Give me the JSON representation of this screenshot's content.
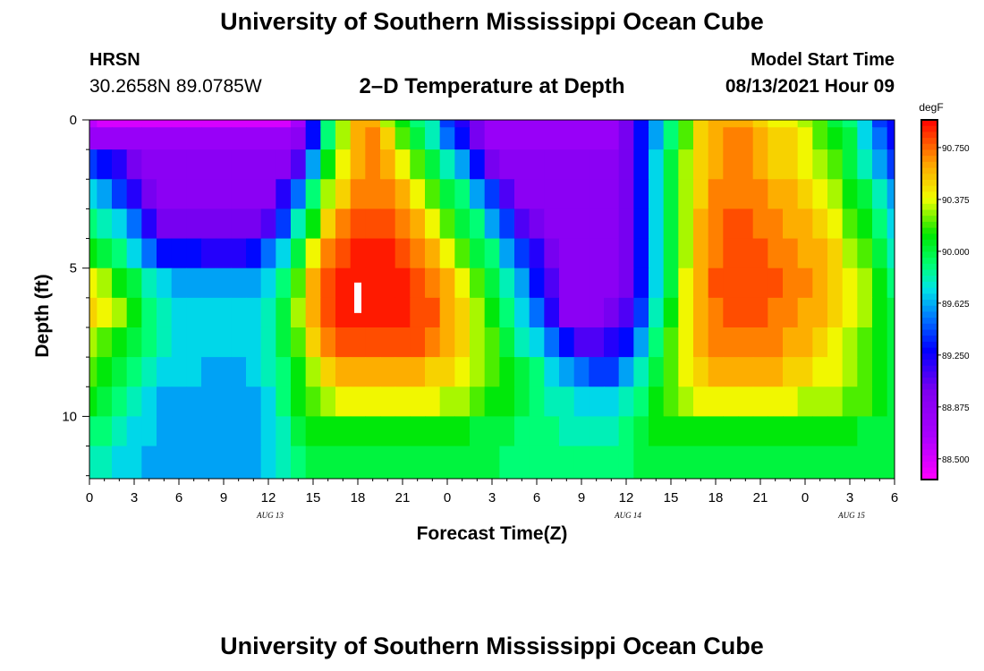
{
  "page": {
    "title_top": "University of Southern Mississippi Ocean Cube",
    "title_bottom": "University of Southern Mississippi Ocean Cube",
    "station": "HRSN",
    "coordinates": "30.2658N  89.0785W",
    "model_start_label": "Model Start Time",
    "model_start_time": "08/13/2021 Hour 09"
  },
  "chart_data": {
    "type": "heatmap",
    "title": "2–D Temperature at Depth",
    "xlabel": "Forecast Time(Z)",
    "ylabel": "Depth (ft)",
    "x_ticks": [
      "0",
      "3",
      "6",
      "9",
      "12",
      "15",
      "18",
      "21",
      "0",
      "3",
      "6",
      "9",
      "12",
      "15",
      "18",
      "21",
      "0",
      "3",
      "6"
    ],
    "x_hours": [
      0,
      54
    ],
    "y_ticks": [
      "0",
      "5",
      "10"
    ],
    "y_range": [
      0,
      12.1
    ],
    "day_labels": [
      {
        "label": "AUG 13",
        "hour": 12
      },
      {
        "label": "AUG 14",
        "hour": 36
      },
      {
        "label": "AUG 15",
        "hour": 51
      }
    ],
    "colorbar": {
      "unit": "degF",
      "ticks": [
        "90.750",
        "90.375",
        "90.000",
        "89.625",
        "89.250",
        "88.875",
        "88.500"
      ],
      "range": [
        88.35,
        90.95
      ]
    },
    "marker": {
      "hour": 18,
      "depth": 6.0
    },
    "grid_hours": [
      0,
      1,
      2,
      3,
      4,
      5,
      6,
      7,
      8,
      9,
      10,
      11,
      12,
      13,
      14,
      15,
      16,
      17,
      18,
      19,
      20,
      21,
      22,
      23,
      24,
      25,
      26,
      27,
      28,
      29,
      30,
      31,
      32,
      33,
      34,
      35,
      36,
      37,
      38,
      39,
      40,
      41,
      42,
      43,
      44,
      45,
      46,
      47,
      48,
      49,
      50,
      51,
      52,
      53,
      54
    ],
    "grid_depths": [
      0,
      0.5,
      1.5,
      2.5,
      3.5,
      4.5,
      5.5,
      6.5,
      7.5,
      8.5,
      9.5,
      10.5,
      11.5,
      12.1
    ],
    "grid_rows": [
      "88.6 88.5 88.5 88.5 88.5 88.5 88.5 88.5 88.5 88.5 88.5 88.5 88.5 88.5 88.7 89.3 89.9 90.3 90.6 90.6 90.3 90.1 89.9 89.8 89.4 89.2 89.0 88.8 88.8 88.8 88.8 88.8 88.8 88.8 88.8 88.8 89.0 89.3 89.6 89.9 90.2 90.5 90.6 90.6 90.6 90.5 90.4 90.4 90.3 90.2 90.0 89.9 89.7 89.4 89.3",
      "88.8 88.8 88.8 88.8 88.8 88.8 88.8 88.8 88.8 88.8 88.8 88.8 88.8 88.8 88.9 89.3 89.9 90.3 90.6 90.7 90.5 90.2 90.0 89.8 89.5 89.3 89.0 88.8 88.8 88.8 88.8 88.8 88.8 88.8 88.8 88.8 89.0 89.3 89.6 89.9 90.2 90.5 90.6 90.7 90.7 90.6 90.5 90.5 90.4 90.2 90.1 90.0 89.7 89.5 89.3",
      "89.4 89.3 89.2 89.0 88.9 88.9 88.9 88.9 88.9 88.9 88.9 88.9 88.9 88.9 89.1 89.6 90.1 90.4 90.6 90.7 90.6 90.4 90.2 90.0 89.8 89.6 89.3 89.0 88.9 88.9 88.9 88.9 88.9 88.9 88.9 88.9 89.0 89.3 89.7 90.0 90.3 90.5 90.6 90.7 90.7 90.6 90.5 90.5 90.4 90.3 90.2 90.0 89.8 89.6 89.4",
      "89.7 89.6 89.4 89.2 89.0 88.9 88.9 88.9 88.9 88.9 88.9 88.9 88.9 89.2 89.5 89.9 90.3 90.5 90.7 90.7 90.7 90.6 90.4 90.2 90.0 89.9 89.6 89.4 89.1 88.9 88.9 88.9 88.9 88.9 88.9 88.9 89.0 89.3 89.7 90.0 90.3 90.5 90.7 90.7 90.7 90.7 90.6 90.6 90.5 90.4 90.3 90.1 90.0 89.8 89.6",
      "89.9 89.8 89.7 89.5 89.2 89.0 89.0 89.0 89.0 89.0 89.0 89.0 89.1 89.4 89.8 90.1 90.5 90.7 90.8 90.8 90.8 90.7 90.6 90.4 90.2 90.0 89.9 89.6 89.4 89.1 89.0 88.9 88.9 88.9 88.9 88.9 89.0 89.3 89.7 90.0 90.3 90.6 90.7 90.8 90.8 90.7 90.7 90.6 90.6 90.5 90.4 90.2 90.1 89.9 89.7",
      "90.1 90.0 89.9 89.7 89.5 89.3 89.3 89.3 89.2 89.2 89.2 89.3 89.5 89.7 90.0 90.4 90.7 90.8 90.9 90.9 90.9 90.8 90.7 90.6 90.4 90.2 90.0 89.9 89.6 89.4 89.2 89.0 88.9 88.9 88.9 88.9 89.0 89.3 89.7 90.0 90.3 90.6 90.7 90.8 90.8 90.8 90.7 90.7 90.6 90.6 90.5 90.3 90.2 90.0 89.8",
      "90.4 90.3 90.1 90.0 89.8 89.7 89.6 89.6 89.6 89.6 89.6 89.6 89.7 89.9 90.2 90.6 90.8 90.9 90.9 90.9 90.9 90.9 90.8 90.7 90.6 90.4 90.2 90.0 89.8 89.6 89.3 89.1 88.9 88.9 88.9 88.9 89.0 89.3 89.7 90.0 90.4 90.6 90.8 90.8 90.8 90.8 90.8 90.7 90.7 90.6 90.5 90.4 90.3 90.1 89.9",
      "90.5 90.4 90.3 90.1 89.9 89.8 89.7 89.7 89.7 89.7 89.7 89.7 89.8 90.0 90.3 90.6 90.8 90.9 90.9 90.9 90.9 90.9 90.8 90.8 90.6 90.5 90.3 90.1 89.9 89.7 89.5 89.2 88.9 88.9 88.9 89.0 89.1 89.4 89.8 90.1 90.4 90.6 90.7 90.8 90.8 90.8 90.7 90.7 90.6 90.6 90.5 90.4 90.3 90.1 90.0",
      "90.3 90.2 90.1 90.0 89.9 89.8 89.7 89.7 89.7 89.7 89.7 89.7 89.8 90.0 90.2 90.5 90.7 90.8 90.8 90.8 90.8 90.8 90.8 90.7 90.6 90.5 90.3 90.2 90.0 89.8 89.7 89.5 89.3 89.1 89.1 89.2 89.3 89.6 89.9 90.2 90.4 90.6 90.7 90.7 90.7 90.7 90.7 90.6 90.6 90.5 90.4 90.3 90.2 90.1 90.0",
      "90.2 90.1 90.0 89.9 89.8 89.7 89.7 89.7 89.6 89.6 89.6 89.7 89.8 89.9 90.1 90.3 90.5 90.6 90.6 90.6 90.6 90.6 90.6 90.5 90.5 90.4 90.3 90.2 90.1 90.0 89.9 89.7 89.6 89.5 89.4 89.4 89.6 89.8 90.0 90.2 90.4 90.5 90.6 90.6 90.6 90.6 90.6 90.5 90.5 90.4 90.4 90.3 90.2 90.1 90.0",
      "90.1 90.0 89.9 89.8 89.7 89.6 89.6 89.6 89.6 89.6 89.6 89.6 89.7 89.9 90.1 90.2 90.3 90.4 90.4 90.4 90.4 90.4 90.4 90.4 90.3 90.3 90.2 90.1 90.1 90.0 89.9 89.8 89.8 89.7 89.7 89.7 89.8 89.9 90.1 90.2 90.3 90.4 90.4 90.4 90.4 90.4 90.4 90.4 90.3 90.3 90.3 90.2 90.2 90.1 90.0",
      "89.9 89.9 89.8 89.7 89.7 89.6 89.6 89.6 89.6 89.6 89.6 89.6 89.7 89.8 90.0 90.1 90.1 90.1 90.1 90.1 90.1 90.1 90.1 90.1 90.1 90.1 90.0 90.0 90.0 89.9 89.9 89.9 89.8 89.8 89.8 89.8 89.9 90.0 90.1 90.1 90.1 90.1 90.1 90.1 90.1 90.1 90.1 90.1 90.1 90.1 90.1 90.1 90.0 90.0 90.0",
      "89.8 89.8 89.7 89.7 89.6 89.6 89.6 89.6 89.6 89.6 89.6 89.6 89.7 89.8 89.9 90.0 90.0 90.0 90.0 90.0 90.0 90.0 90.0 90.0 90.0 90.0 90.0 90.0 89.9 89.9 89.9 89.9 89.9 89.9 89.9 89.9 89.9 90.0 90.0 90.0 90.0 90.0 90.0 90.0 90.0 90.0 90.0 90.0 90.0 90.0 90.0 90.0 90.0 90.0 90.0",
      "89.8 89.8 89.7 89.7 89.6 89.6 89.6 89.6 89.6 89.6 89.6 89.6 89.7 89.8 89.9 90.0 90.0 90.0 90.0 90.0 90.0 90.0 90.0 90.0 90.0 90.0 90.0 90.0 89.9 89.9 89.9 89.9 89.9 89.9 89.9 89.9 89.9 90.0 90.0 90.0 90.0 90.0 90.0 90.0 90.0 90.0 90.0 90.0 90.0 90.0 90.0 90.0 90.0 90.0 90.0"
    ]
  }
}
